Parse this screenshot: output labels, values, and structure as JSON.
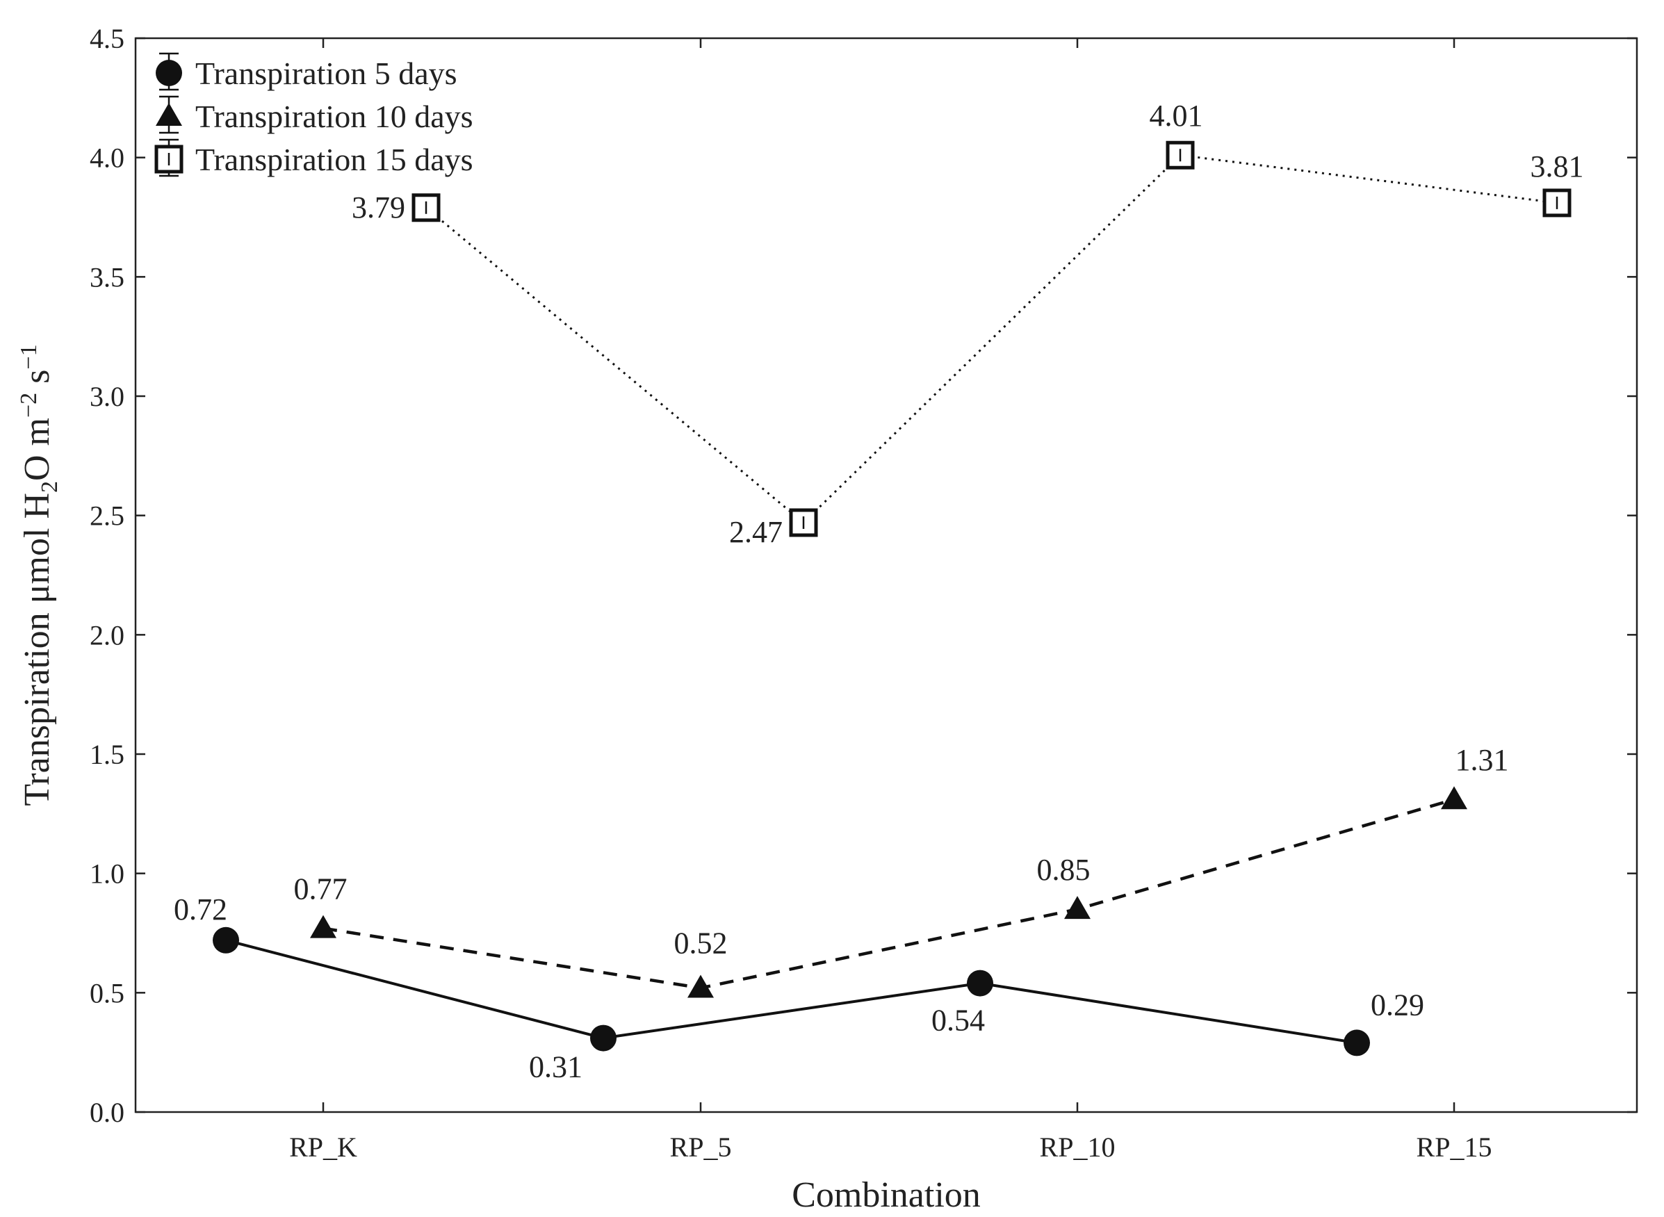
{
  "chart_data": {
    "type": "line",
    "title": "",
    "xlabel": "Combination",
    "ylabel": {
      "main": "Transpiration μmol H",
      "sub": "2",
      "unit": "O m",
      "exp1": "−2",
      "unit2": " s",
      "exp2": "−1"
    },
    "categories": [
      "RP_K",
      "RP_5",
      "RP_10",
      "RP_15"
    ],
    "ylim": [
      0,
      4.5
    ],
    "yticks": [
      {
        "value": 0.0,
        "label": "0.0"
      },
      {
        "value": 0.5,
        "label": "0.5"
      },
      {
        "value": 1.0,
        "label": "1.0"
      },
      {
        "value": 1.5,
        "label": "1.5"
      },
      {
        "value": 2.0,
        "label": "2.0"
      },
      {
        "value": 2.5,
        "label": "2.5"
      },
      {
        "value": 3.0,
        "label": "3.0"
      },
      {
        "value": 3.5,
        "label": "3.5"
      },
      {
        "value": 4.0,
        "label": "4.0"
      },
      {
        "value": 4.5,
        "label": "4.5"
      }
    ],
    "legend_position": "top-left",
    "series": [
      {
        "name": "Transpiration 5 days",
        "marker": "circle",
        "line_style": "solid",
        "values": [
          0.72,
          0.31,
          0.54,
          0.29
        ],
        "labels": [
          "0.72",
          "0.31",
          "0.54",
          "0.29"
        ]
      },
      {
        "name": "Transpiration 10 days",
        "marker": "triangle",
        "line_style": "dashed",
        "values": [
          0.77,
          0.52,
          0.85,
          1.31
        ],
        "labels": [
          "0.77",
          "0.52",
          "0.85",
          "1.31"
        ]
      },
      {
        "name": "Transpiration 15 days",
        "marker": "square",
        "line_style": "dotted",
        "values": [
          3.79,
          2.47,
          4.01,
          3.81
        ],
        "labels": [
          "3.79",
          "2.47",
          "4.01",
          "3.81"
        ]
      }
    ]
  }
}
